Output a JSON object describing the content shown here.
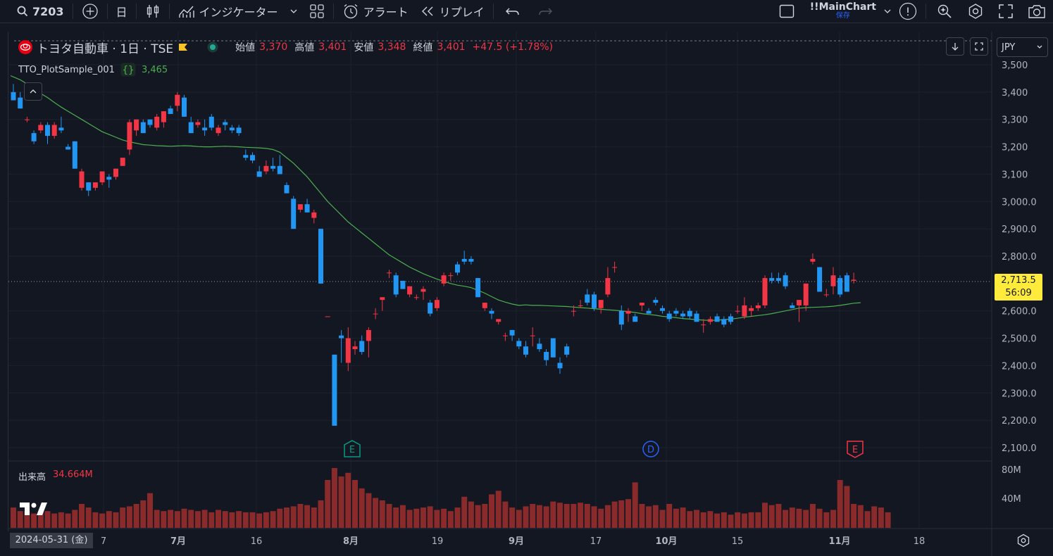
{
  "toolbar": {
    "symbol": "7203",
    "interval": "日",
    "indicators_label": "インジケーター",
    "alert_label": "アラート",
    "replay_label": "リプレイ",
    "layout_name": "!!MainChart",
    "layout_status": "保存"
  },
  "legend": {
    "symbol_name": "トヨタ自動車 · 1日 · TSE",
    "open_label": "始値",
    "open_value": "3,370",
    "high_label": "高値",
    "high_value": "3,401",
    "low_label": "安値",
    "low_value": "3,348",
    "close_label": "終値",
    "close_value": "3,401",
    "change": "+47.5 (+1.78%)",
    "indicator_name": "TTO_PlotSample_001",
    "indicator_value": "3,465"
  },
  "volume": {
    "label": "出来高",
    "value": "34.664M"
  },
  "price_scale": {
    "currency": "JPY",
    "ticks": [
      "3,500",
      "3,400",
      "3,300",
      "3,200",
      "3,100",
      "3,000.0",
      "2,900.0",
      "2,800.0",
      "2,600.0",
      "2,500.0",
      "2,400.0",
      "2,300.0",
      "2,200.0",
      "2,100.0"
    ],
    "current_price": "2,713.5",
    "countdown": "56:09",
    "volume_ticks": [
      "80M",
      "40M"
    ]
  },
  "time_scale": {
    "crosshair_date": "2024-05-31 (金)",
    "ticks": [
      "7",
      "7月",
      "16",
      "8月",
      "19",
      "9月",
      "17",
      "10月",
      "15",
      "11月",
      "18"
    ]
  },
  "events": [
    {
      "letter": "E",
      "color": "#089981"
    },
    {
      "letter": "D",
      "color": "#2962ff"
    },
    {
      "letter": "E",
      "color": "#f23645"
    }
  ],
  "colors": {
    "up": "#f23645",
    "down": "#2196f3",
    "ma": "#4caf50",
    "volume": "#8b2a2a",
    "current_price_tag": "#ffeb3b"
  },
  "chart_data": {
    "type": "candlestick",
    "price_range": [
      2070,
      3560
    ],
    "candles": [
      {
        "o": 3400,
        "h": 3430,
        "l": 3380,
        "c": 3370
      },
      {
        "o": 3380,
        "h": 3400,
        "l": 3340,
        "c": 3340
      },
      {
        "o": 3300,
        "h": 3310,
        "l": 3290,
        "c": 3300
      },
      {
        "o": 3250,
        "h": 3260,
        "l": 3210,
        "c": 3220
      },
      {
        "o": 3260,
        "h": 3290,
        "l": 3250,
        "c": 3280
      },
      {
        "o": 3280,
        "h": 3290,
        "l": 3210,
        "c": 3240
      },
      {
        "o": 3240,
        "h": 3290,
        "l": 3230,
        "c": 3280
      },
      {
        "o": 3270,
        "h": 3310,
        "l": 3250,
        "c": 3260
      },
      {
        "o": 3200,
        "h": 3210,
        "l": 3190,
        "c": 3190
      },
      {
        "o": 3220,
        "h": 3220,
        "l": 3120,
        "c": 3120
      },
      {
        "o": 3050,
        "h": 3120,
        "l": 3040,
        "c": 3110
      },
      {
        "o": 3070,
        "h": 3070,
        "l": 3020,
        "c": 3040
      },
      {
        "o": 3050,
        "h": 3070,
        "l": 3040,
        "c": 3070
      },
      {
        "o": 3070,
        "h": 3110,
        "l": 3060,
        "c": 3110
      },
      {
        "o": 3090,
        "h": 3100,
        "l": 3050,
        "c": 3080
      },
      {
        "o": 3090,
        "h": 3120,
        "l": 3080,
        "c": 3120
      },
      {
        "o": 3130,
        "h": 3160,
        "l": 3130,
        "c": 3160
      },
      {
        "o": 3190,
        "h": 3300,
        "l": 3170,
        "c": 3290
      },
      {
        "o": 3260,
        "h": 3300,
        "l": 3240,
        "c": 3300
      },
      {
        "o": 3290,
        "h": 3300,
        "l": 3250,
        "c": 3250
      },
      {
        "o": 3300,
        "h": 3300,
        "l": 3270,
        "c": 3280
      },
      {
        "o": 3270,
        "h": 3320,
        "l": 3260,
        "c": 3310
      },
      {
        "o": 3290,
        "h": 3330,
        "l": 3270,
        "c": 3330
      },
      {
        "o": 3340,
        "h": 3350,
        "l": 3320,
        "c": 3320
      },
      {
        "o": 3350,
        "h": 3400,
        "l": 3330,
        "c": 3390
      },
      {
        "o": 3380,
        "h": 3390,
        "l": 3310,
        "c": 3310
      },
      {
        "o": 3290,
        "h": 3310,
        "l": 3250,
        "c": 3250
      },
      {
        "o": 3280,
        "h": 3300,
        "l": 3270,
        "c": 3290
      },
      {
        "o": 3270,
        "h": 3300,
        "l": 3240,
        "c": 3260
      },
      {
        "o": 3310,
        "h": 3320,
        "l": 3260,
        "c": 3270
      },
      {
        "o": 3250,
        "h": 3280,
        "l": 3240,
        "c": 3270
      },
      {
        "o": 3290,
        "h": 3300,
        "l": 3260,
        "c": 3280
      },
      {
        "o": 3270,
        "h": 3280,
        "l": 3250,
        "c": 3260
      },
      {
        "o": 3270,
        "h": 3280,
        "l": 3240,
        "c": 3250
      },
      {
        "o": 3170,
        "h": 3190,
        "l": 3150,
        "c": 3160
      },
      {
        "o": 3170,
        "h": 3180,
        "l": 3140,
        "c": 3150
      },
      {
        "o": 3110,
        "h": 3130,
        "l": 3090,
        "c": 3090
      },
      {
        "o": 3110,
        "h": 3150,
        "l": 3100,
        "c": 3130
      },
      {
        "o": 3130,
        "h": 3160,
        "l": 3110,
        "c": 3120
      },
      {
        "o": 3130,
        "h": 3170,
        "l": 3100,
        "c": 3100
      },
      {
        "o": 3060,
        "h": 3070,
        "l": 3030,
        "c": 3030
      },
      {
        "o": 3010,
        "h": 3020,
        "l": 2900,
        "c": 2900
      },
      {
        "o": 2970,
        "h": 2990,
        "l": 2960,
        "c": 2990
      },
      {
        "o": 2990,
        "h": 3010,
        "l": 2960,
        "c": 2960
      },
      {
        "o": 2940,
        "h": 2970,
        "l": 2920,
        "c": 2960
      },
      {
        "o": 2900,
        "h": 2900,
        "l": 2700,
        "c": 2700
      },
      {
        "o": 2580,
        "h": 2580,
        "l": 2580,
        "c": 2580
      },
      {
        "o": 2440,
        "h": 2440,
        "l": 2180,
        "c": 2180
      },
      {
        "o": 2510,
        "h": 2530,
        "l": 2410,
        "c": 2500
      },
      {
        "o": 2410,
        "h": 2540,
        "l": 2380,
        "c": 2500
      },
      {
        "o": 2460,
        "h": 2490,
        "l": 2440,
        "c": 2470
      },
      {
        "o": 2490,
        "h": 2510,
        "l": 2440,
        "c": 2450
      },
      {
        "o": 2490,
        "h": 2540,
        "l": 2430,
        "c": 2530
      },
      {
        "o": 2590,
        "h": 2610,
        "l": 2570,
        "c": 2590
      },
      {
        "o": 2640,
        "h": 2650,
        "l": 2600,
        "c": 2650
      },
      {
        "o": 2740,
        "h": 2750,
        "l": 2720,
        "c": 2740
      },
      {
        "o": 2730,
        "h": 2740,
        "l": 2650,
        "c": 2660
      },
      {
        "o": 2710,
        "h": 2710,
        "l": 2680,
        "c": 2680
      },
      {
        "o": 2660,
        "h": 2690,
        "l": 2650,
        "c": 2690
      },
      {
        "o": 2650,
        "h": 2660,
        "l": 2640,
        "c": 2650
      },
      {
        "o": 2670,
        "h": 2690,
        "l": 2640,
        "c": 2680
      },
      {
        "o": 2630,
        "h": 2640,
        "l": 2580,
        "c": 2590
      },
      {
        "o": 2610,
        "h": 2650,
        "l": 2600,
        "c": 2640
      },
      {
        "o": 2700,
        "h": 2740,
        "l": 2690,
        "c": 2730
      },
      {
        "o": 2730,
        "h": 2740,
        "l": 2710,
        "c": 2730
      },
      {
        "o": 2770,
        "h": 2780,
        "l": 2730,
        "c": 2740
      },
      {
        "o": 2790,
        "h": 2820,
        "l": 2770,
        "c": 2780
      },
      {
        "o": 2790,
        "h": 2800,
        "l": 2770,
        "c": 2780
      },
      {
        "o": 2720,
        "h": 2720,
        "l": 2650,
        "c": 2650
      },
      {
        "o": 2610,
        "h": 2630,
        "l": 2600,
        "c": 2630
      },
      {
        "o": 2600,
        "h": 2610,
        "l": 2570,
        "c": 2590
      },
      {
        "o": 2560,
        "h": 2570,
        "l": 2550,
        "c": 2570
      },
      {
        "o": 2510,
        "h": 2520,
        "l": 2490,
        "c": 2510
      },
      {
        "o": 2530,
        "h": 2530,
        "l": 2490,
        "c": 2510
      },
      {
        "o": 2490,
        "h": 2500,
        "l": 2460,
        "c": 2470
      },
      {
        "o": 2470,
        "h": 2490,
        "l": 2430,
        "c": 2440
      },
      {
        "o": 2510,
        "h": 2540,
        "l": 2470,
        "c": 2510
      },
      {
        "o": 2480,
        "h": 2500,
        "l": 2450,
        "c": 2460
      },
      {
        "o": 2450,
        "h": 2460,
        "l": 2400,
        "c": 2420
      },
      {
        "o": 2500,
        "h": 2500,
        "l": 2430,
        "c": 2430
      },
      {
        "o": 2410,
        "h": 2430,
        "l": 2370,
        "c": 2390
      },
      {
        "o": 2470,
        "h": 2480,
        "l": 2430,
        "c": 2440
      },
      {
        "o": 2600,
        "h": 2620,
        "l": 2580,
        "c": 2600
      },
      {
        "o": 2620,
        "h": 2640,
        "l": 2610,
        "c": 2620
      },
      {
        "o": 2660,
        "h": 2680,
        "l": 2620,
        "c": 2630
      },
      {
        "o": 2660,
        "h": 2670,
        "l": 2600,
        "c": 2610
      },
      {
        "o": 2610,
        "h": 2640,
        "l": 2590,
        "c": 2640
      },
      {
        "o": 2660,
        "h": 2760,
        "l": 2650,
        "c": 2720
      },
      {
        "o": 2760,
        "h": 2780,
        "l": 2740,
        "c": 2760
      },
      {
        "o": 2600,
        "h": 2620,
        "l": 2530,
        "c": 2550
      },
      {
        "o": 2590,
        "h": 2610,
        "l": 2560,
        "c": 2600
      },
      {
        "o": 2580,
        "h": 2590,
        "l": 2560,
        "c": 2560
      },
      {
        "o": 2620,
        "h": 2630,
        "l": 2600,
        "c": 2630
      },
      {
        "o": 2600,
        "h": 2610,
        "l": 2590,
        "c": 2590
      },
      {
        "o": 2640,
        "h": 2650,
        "l": 2620,
        "c": 2630
      },
      {
        "o": 2610,
        "h": 2620,
        "l": 2590,
        "c": 2600
      },
      {
        "o": 2590,
        "h": 2600,
        "l": 2560,
        "c": 2570
      },
      {
        "o": 2600,
        "h": 2610,
        "l": 2580,
        "c": 2590
      },
      {
        "o": 2590,
        "h": 2600,
        "l": 2570,
        "c": 2580
      },
      {
        "o": 2600,
        "h": 2610,
        "l": 2570,
        "c": 2580
      },
      {
        "o": 2590,
        "h": 2600,
        "l": 2560,
        "c": 2560
      },
      {
        "o": 2550,
        "h": 2570,
        "l": 2520,
        "c": 2550
      },
      {
        "o": 2560,
        "h": 2580,
        "l": 2550,
        "c": 2570
      },
      {
        "o": 2580,
        "h": 2590,
        "l": 2560,
        "c": 2560
      },
      {
        "o": 2570,
        "h": 2580,
        "l": 2540,
        "c": 2550
      },
      {
        "o": 2580,
        "h": 2590,
        "l": 2550,
        "c": 2560
      },
      {
        "o": 2600,
        "h": 2620,
        "l": 2590,
        "c": 2600
      },
      {
        "o": 2580,
        "h": 2650,
        "l": 2570,
        "c": 2620
      },
      {
        "o": 2600,
        "h": 2620,
        "l": 2580,
        "c": 2610
      },
      {
        "o": 2610,
        "h": 2630,
        "l": 2600,
        "c": 2620
      },
      {
        "o": 2620,
        "h": 2730,
        "l": 2610,
        "c": 2720
      },
      {
        "o": 2720,
        "h": 2740,
        "l": 2700,
        "c": 2710
      },
      {
        "o": 2720,
        "h": 2740,
        "l": 2700,
        "c": 2710
      },
      {
        "o": 2730,
        "h": 2740,
        "l": 2680,
        "c": 2690
      },
      {
        "o": 2620,
        "h": 2630,
        "l": 2610,
        "c": 2610
      },
      {
        "o": 2620,
        "h": 2640,
        "l": 2560,
        "c": 2640
      },
      {
        "o": 2620,
        "h": 2700,
        "l": 2600,
        "c": 2700
      },
      {
        "o": 2780,
        "h": 2810,
        "l": 2770,
        "c": 2790
      },
      {
        "o": 2760,
        "h": 2760,
        "l": 2670,
        "c": 2670
      },
      {
        "o": 2660,
        "h": 2680,
        "l": 2650,
        "c": 2660
      },
      {
        "o": 2690,
        "h": 2760,
        "l": 2660,
        "c": 2730
      },
      {
        "o": 2720,
        "h": 2730,
        "l": 2650,
        "c": 2660
      },
      {
        "o": 2730,
        "h": 2740,
        "l": 2670,
        "c": 2670
      },
      {
        "o": 2710,
        "h": 2740,
        "l": 2700,
        "c": 2714
      }
    ],
    "moving_average": [
      3460,
      3445,
      3430,
      3410,
      3395,
      3380,
      3362,
      3345,
      3330,
      3315,
      3300,
      3285,
      3270,
      3255,
      3245,
      3235,
      3225,
      3218,
      3213,
      3208,
      3206,
      3204,
      3203,
      3202,
      3203,
      3204,
      3203,
      3201,
      3200,
      3200,
      3201,
      3202,
      3201,
      3200,
      3198,
      3197,
      3196,
      3194,
      3190,
      3180,
      3160,
      3140,
      3115,
      3090,
      3060,
      3030,
      3000,
      2975,
      2950,
      2925,
      2905,
      2885,
      2865,
      2845,
      2825,
      2805,
      2790,
      2775,
      2760,
      2748,
      2736,
      2726,
      2716,
      2708,
      2700,
      2694,
      2690,
      2685,
      2675,
      2665,
      2652,
      2640,
      2632,
      2625,
      2620,
      2622,
      2620,
      2620,
      2619,
      2618,
      2617,
      2616,
      2614,
      2612,
      2610,
      2608,
      2606,
      2604,
      2602,
      2600,
      2597,
      2594,
      2590,
      2587,
      2584,
      2580,
      2578,
      2575,
      2572,
      2570,
      2568,
      2566,
      2565,
      2566,
      2568,
      2570,
      2573,
      2577,
      2580,
      2583,
      2586,
      2590,
      2595,
      2600,
      2605,
      2610,
      2612,
      2613,
      2614,
      2615,
      2617,
      2620,
      2624,
      2628,
      2630
    ],
    "volume": [
      34,
      28,
      28,
      24,
      26,
      28,
      24,
      26,
      24,
      30,
      40,
      34,
      26,
      24,
      28,
      26,
      34,
      36,
      40,
      46,
      58,
      30,
      28,
      30,
      28,
      32,
      30,
      28,
      30,
      26,
      30,
      28,
      26,
      28,
      26,
      26,
      24,
      26,
      28,
      32,
      34,
      36,
      40,
      38,
      34,
      46,
      80,
      100,
      86,
      92,
      80,
      66,
      58,
      50,
      46,
      40,
      34,
      38,
      30,
      32,
      34,
      36,
      30,
      32,
      28,
      34,
      52,
      44,
      38,
      40,
      56,
      62,
      44,
      34,
      30,
      36,
      40,
      38,
      36,
      44,
      42,
      40,
      40,
      42,
      40,
      36,
      32,
      38,
      44,
      46,
      48,
      76,
      40,
      36,
      38,
      30,
      40,
      32,
      34,
      28,
      30,
      26,
      28,
      24,
      26,
      22,
      26,
      24,
      26,
      26,
      42,
      38,
      40,
      30,
      34,
      32,
      30,
      40,
      32,
      26,
      30,
      80,
      70,
      40,
      38,
      28,
      36,
      34,
      26
    ]
  }
}
